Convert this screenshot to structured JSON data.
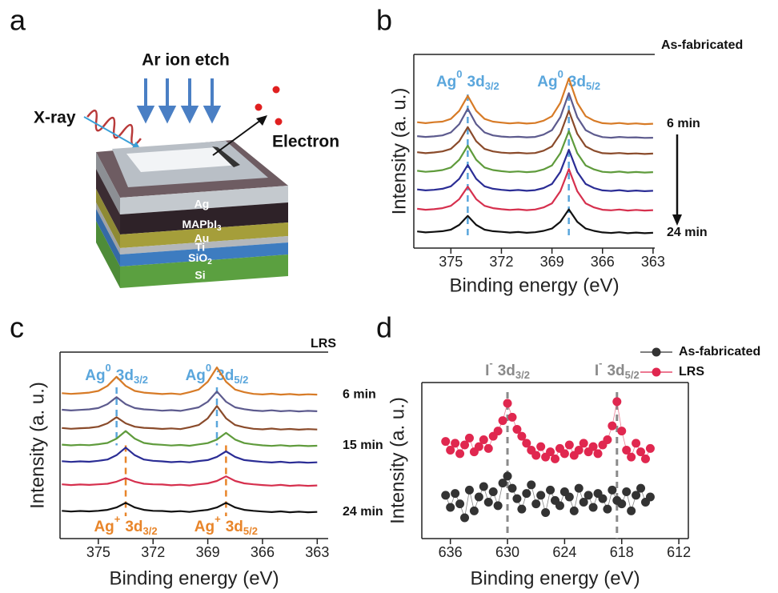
{
  "diagram": {
    "panel_label": "a",
    "etch": "Ar ion etch",
    "xray": "X-ray",
    "electron": "Electron",
    "layers": [
      {
        "text": "Ag"
      },
      {
        "text": "MAPbI",
        "sub": "3"
      },
      {
        "text": "Au"
      },
      {
        "text": "Ti"
      },
      {
        "text": "SiO",
        "sub": "2"
      },
      {
        "text": "Si"
      }
    ]
  },
  "chart_data": [
    {
      "type": "line",
      "panel_label": "b",
      "note": "As-fabricated",
      "x_label": "Binding energy (eV)",
      "y_label": "Intensity (a. u.)",
      "xlim": [
        377.2,
        362.9
      ],
      "xticks": [
        375,
        372,
        369,
        366,
        363
      ],
      "ylim": [
        0,
        10
      ],
      "x": [
        377,
        376.5,
        376,
        375.5,
        375,
        374.5,
        374,
        373.5,
        373,
        372.5,
        372,
        371.5,
        371,
        370.5,
        370,
        369.5,
        369,
        368.5,
        368,
        367.5,
        367,
        366.5,
        366,
        365.5,
        365,
        364.5,
        364,
        363.5,
        363
      ],
      "markers": [
        {
          "x": 374,
          "color": "#5aa6dc",
          "side": "top",
          "label": {
            "main": "Ag",
            "sup": "0",
            "text": "3d",
            "sub": "3/2"
          }
        },
        {
          "x": 368,
          "color": "#5aa6dc",
          "side": "top",
          "label": {
            "main": "Ag",
            "sup": "0",
            "text": "3d",
            "sub": "5/2"
          }
        }
      ],
      "series": [
        {
          "name": "6 min",
          "color": "#d77b27",
          "values": [
            6.5,
            6.45,
            6.5,
            6.53,
            6.67,
            7.09,
            7.86,
            7.09,
            6.67,
            6.53,
            6.48,
            6.44,
            6.47,
            6.43,
            6.46,
            6.58,
            6.81,
            7.5,
            8.76,
            7.5,
            6.81,
            6.58,
            6.45,
            6.42,
            6.46,
            6.41,
            6.44,
            6.4,
            6.42
          ]
        },
        {
          "color": "#5d5b8e",
          "values": [
            5.78,
            5.74,
            5.77,
            5.82,
            5.97,
            6.4,
            7.2,
            6.4,
            5.97,
            5.82,
            5.76,
            5.73,
            5.75,
            5.72,
            5.74,
            5.86,
            6.09,
            6.76,
            8.0,
            6.76,
            6.09,
            5.86,
            5.73,
            5.7,
            5.74,
            5.71,
            5.72,
            5.69,
            5.7
          ]
        },
        {
          "color": "#8a4b2b",
          "values": [
            4.95,
            4.9,
            4.94,
            4.99,
            5.12,
            5.52,
            6.25,
            5.52,
            5.12,
            4.99,
            4.93,
            4.9,
            4.92,
            4.89,
            4.91,
            5.03,
            5.25,
            5.9,
            7.09,
            5.9,
            5.25,
            5.03,
            4.9,
            4.88,
            4.91,
            4.87,
            4.89,
            4.86,
            4.88
          ]
        },
        {
          "color": "#5f9b3c",
          "values": [
            3.99,
            3.94,
            3.97,
            4.03,
            4.16,
            4.56,
            5.29,
            4.56,
            4.16,
            4.03,
            3.97,
            3.93,
            3.96,
            3.92,
            3.95,
            4.06,
            4.27,
            4.9,
            6.04,
            4.9,
            4.27,
            4.06,
            3.94,
            3.91,
            3.95,
            3.9,
            3.93,
            3.9,
            3.92
          ]
        },
        {
          "color": "#2b2d95",
          "values": [
            3.03,
            2.98,
            3.01,
            3.06,
            3.19,
            3.58,
            4.29,
            3.58,
            3.19,
            3.06,
            3.01,
            2.97,
            3.0,
            2.96,
            2.99,
            3.1,
            3.31,
            3.94,
            5.08,
            3.94,
            3.31,
            3.1,
            2.98,
            2.95,
            2.99,
            2.94,
            2.97,
            2.94,
            2.96
          ]
        },
        {
          "color": "#d6304e",
          "values": [
            2.03,
            1.98,
            2.01,
            2.06,
            2.18,
            2.53,
            3.17,
            2.53,
            2.18,
            2.06,
            2.01,
            1.97,
            2.0,
            1.96,
            1.99,
            2.1,
            2.31,
            2.94,
            4.08,
            2.94,
            2.31,
            2.1,
            1.98,
            1.95,
            1.99,
            1.94,
            1.97,
            1.94,
            1.96
          ]
        },
        {
          "name": "24 min",
          "color": "#111111",
          "values": [
            0.86,
            0.81,
            0.84,
            0.87,
            0.95,
            1.2,
            1.66,
            1.2,
            0.95,
            0.87,
            0.84,
            0.8,
            0.83,
            0.79,
            0.82,
            0.89,
            1.01,
            1.36,
            2.0,
            1.36,
            1.01,
            0.89,
            0.81,
            0.78,
            0.82,
            0.77,
            0.8,
            0.77,
            0.79
          ]
        }
      ]
    },
    {
      "type": "line",
      "panel_label": "c",
      "note": "LRS",
      "x_label": "Binding energy (eV)",
      "y_label": "Intensity (a. u.)",
      "xlim": [
        377.1,
        362.4
      ],
      "xticks": [
        375,
        372,
        369,
        366,
        363
      ],
      "ylim": [
        0,
        10
      ],
      "x": [
        377,
        376.5,
        376,
        375.5,
        375,
        374.5,
        374,
        373.5,
        373,
        372.5,
        372,
        371.5,
        371,
        370.5,
        370,
        369.5,
        369,
        368.5,
        368,
        367.5,
        367,
        366.5,
        366,
        365.5,
        365,
        364.5,
        364,
        363.5,
        363
      ],
      "markers": [
        {
          "x": 374,
          "color": "#5aa6dc",
          "side": "top",
          "label": {
            "main": "Ag",
            "sup": "0",
            "text": "3d",
            "sub": "3/2"
          }
        },
        {
          "x": 368.5,
          "color": "#5aa6dc",
          "side": "top",
          "label": {
            "main": "Ag",
            "sup": "0",
            "text": "3d",
            "sub": "5/2"
          }
        },
        {
          "x": 373.5,
          "color": "#e8852a",
          "side": "bottom",
          "label": {
            "main": "Ag",
            "sup": "+",
            "text": "3d",
            "sub": "3/2"
          }
        },
        {
          "x": 368,
          "color": "#e8852a",
          "side": "bottom",
          "label": {
            "main": "Ag",
            "sup": "+",
            "text": "3d",
            "sub": "5/2"
          }
        }
      ],
      "series": [
        {
          "name": "6 min",
          "color": "#d77b27",
          "values": [
            7.8,
            7.76,
            7.79,
            7.83,
            7.92,
            8.19,
            8.68,
            8.19,
            7.92,
            7.83,
            7.79,
            7.75,
            7.78,
            7.74,
            7.85,
            7.99,
            8.41,
            9.18,
            8.41,
            7.99,
            7.85,
            7.76,
            7.73,
            7.77,
            7.72,
            7.75,
            7.71,
            7.74,
            7.72
          ]
        },
        {
          "color": "#5d5b8e",
          "values": [
            6.91,
            6.87,
            6.9,
            6.93,
            7.0,
            7.21,
            7.59,
            7.21,
            7.0,
            6.93,
            6.9,
            6.86,
            6.89,
            6.85,
            6.94,
            7.04,
            7.34,
            7.89,
            7.34,
            7.04,
            6.94,
            6.87,
            6.84,
            6.88,
            6.83,
            6.86,
            6.82,
            6.85,
            6.83
          ]
        },
        {
          "color": "#8a4b2b",
          "values": [
            5.93,
            5.89,
            5.92,
            5.94,
            6.0,
            6.18,
            6.51,
            6.18,
            6.0,
            5.94,
            5.92,
            5.88,
            5.91,
            5.87,
            5.97,
            6.09,
            6.45,
            7.11,
            6.45,
            6.09,
            5.97,
            5.89,
            5.86,
            5.9,
            5.85,
            5.88,
            5.84,
            5.87,
            5.85
          ]
        },
        {
          "name": "15 min",
          "color": "#5f9b3c",
          "values": [
            5.04,
            5.0,
            5.03,
            5.01,
            5.06,
            5.13,
            5.36,
            5.77,
            5.36,
            5.13,
            5.06,
            5.03,
            4.99,
            5.02,
            4.98,
            5.05,
            5.12,
            5.31,
            5.67,
            5.31,
            5.12,
            5.05,
            5.0,
            4.97,
            5.01,
            4.96,
            4.99,
            4.96,
            4.98
          ]
        },
        {
          "color": "#2b2d95",
          "values": [
            4.15,
            4.11,
            4.14,
            4.12,
            4.17,
            4.24,
            4.47,
            4.88,
            4.47,
            4.24,
            4.17,
            4.14,
            4.1,
            4.13,
            4.09,
            4.16,
            4.21,
            4.38,
            4.68,
            4.38,
            4.21,
            4.16,
            4.11,
            4.08,
            4.12,
            4.07,
            4.1,
            4.07,
            4.09
          ]
        },
        {
          "color": "#d6304e",
          "values": [
            2.91,
            2.87,
            2.9,
            2.88,
            2.91,
            2.94,
            3.05,
            3.24,
            3.05,
            2.94,
            2.91,
            2.9,
            2.86,
            2.89,
            2.85,
            2.91,
            2.96,
            3.09,
            3.34,
            3.09,
            2.96,
            2.91,
            2.87,
            2.84,
            2.88,
            2.83,
            2.86,
            2.83,
            2.85
          ]
        },
        {
          "name": "24 min",
          "color": "#111111",
          "values": [
            1.49,
            1.45,
            1.48,
            1.46,
            1.49,
            1.54,
            1.67,
            1.92,
            1.67,
            1.54,
            1.49,
            1.48,
            1.44,
            1.47,
            1.43,
            1.49,
            1.54,
            1.67,
            1.92,
            1.67,
            1.54,
            1.49,
            1.45,
            1.42,
            1.46,
            1.41,
            1.44,
            1.41,
            1.43
          ]
        }
      ]
    },
    {
      "type": "scatter",
      "panel_label": "d",
      "x_label": "Binding energy (eV)",
      "y_label": "Intensity (a. u.)",
      "xlim": [
        639,
        611
      ],
      "xticks": [
        636,
        630,
        624,
        618,
        612
      ],
      "ylim": [
        0,
        9
      ],
      "legend": "top-right",
      "x": [
        636.5,
        636,
        635.5,
        635,
        634.5,
        634,
        633.5,
        633,
        632.5,
        632,
        631.5,
        631,
        630.5,
        630,
        629.5,
        629,
        628.5,
        628,
        627.5,
        627,
        626.5,
        626,
        625.5,
        625,
        624.5,
        624,
        623.5,
        623,
        622.5,
        622,
        621.5,
        621,
        620.5,
        620,
        619.5,
        619,
        618.5,
        618,
        617.5,
        617,
        616.5,
        616,
        615.5,
        615
      ],
      "markers": [
        {
          "x": 630,
          "color": "#8a8a8a",
          "side": "top",
          "label": {
            "main": "I",
            "sup": "-",
            "text": "3d",
            "sub": "3/2"
          }
        },
        {
          "x": 618.5,
          "color": "#8a8a8a",
          "side": "top",
          "label": {
            "main": "I",
            "sup": "-",
            "text": "3d",
            "sub": "5/2"
          }
        }
      ],
      "series": [
        {
          "name": "As-fabricated",
          "color": "#333333",
          "values": [
            2.5,
            1.8,
            2.6,
            2.0,
            1.2,
            2.8,
            1.6,
            2.4,
            3.0,
            2.1,
            2.7,
            1.9,
            3.2,
            3.6,
            2.9,
            2.3,
            1.7,
            2.6,
            3.1,
            2.0,
            2.5,
            1.5,
            2.8,
            2.2,
            1.9,
            2.7,
            2.4,
            1.6,
            2.9,
            2.1,
            2.5,
            1.8,
            2.6,
            2.3,
            1.7,
            2.8,
            2.2,
            2.0,
            2.7,
            1.6,
            2.5,
            2.9,
            2.1,
            2.4
          ]
        },
        {
          "name": "LRS",
          "color": "#e0274f",
          "values": [
            5.6,
            5.1,
            5.5,
            4.9,
            5.4,
            5.8,
            5.0,
            5.3,
            5.7,
            5.2,
            5.9,
            6.2,
            6.8,
            7.8,
            7.0,
            6.3,
            5.9,
            5.5,
            5.1,
            4.8,
            5.3,
            4.7,
            5.0,
            4.6,
            5.2,
            4.9,
            5.4,
            4.8,
            5.1,
            5.5,
            5.0,
            5.3,
            4.9,
            5.4,
            5.7,
            6.5,
            7.9,
            6.2,
            5.1,
            4.7,
            5.5,
            5.0,
            4.6,
            5.2
          ]
        }
      ]
    }
  ]
}
